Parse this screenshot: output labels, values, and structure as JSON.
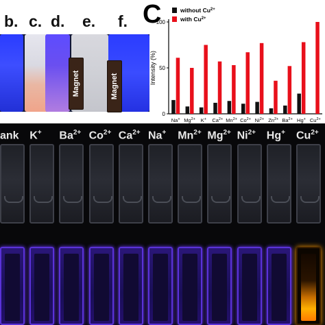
{
  "top_panel": {
    "letters": [
      "b.",
      "c.",
      "d.",
      "e.",
      "f."
    ],
    "magnet_label": "Magnet"
  },
  "panel_c_label": "C",
  "chart_data": {
    "type": "bar",
    "ylabel": "Intensity (%)",
    "yticks": [
      0,
      50,
      100
    ],
    "ylim": [
      0,
      100
    ],
    "legend_position": "top-left",
    "categories": [
      {
        "base": "Na",
        "sup": "+"
      },
      {
        "base": "Mg",
        "sup": "2+"
      },
      {
        "base": "K",
        "sup": "+"
      },
      {
        "base": "Ca",
        "sup": "2+"
      },
      {
        "base": "Mn",
        "sup": "2+"
      },
      {
        "base": "Co",
        "sup": "2+"
      },
      {
        "base": "Ni",
        "sup": "2+"
      },
      {
        "base": "Zn",
        "sup": "2+"
      },
      {
        "base": "Ba",
        "sup": "2+"
      },
      {
        "base": "Hg",
        "sup": "+"
      },
      {
        "base": "Cu",
        "sup": "2+"
      }
    ],
    "series": [
      {
        "name": "without Cu",
        "name_sup": "2+",
        "color": "#111111",
        "values": [
          15,
          8,
          7,
          12,
          14,
          11,
          13,
          6,
          9,
          22,
          0
        ]
      },
      {
        "name": "with Cu",
        "name_sup": "2+",
        "color": "#e8101b",
        "values": [
          61,
          50,
          75,
          57,
          53,
          67,
          77,
          36,
          52,
          78,
          100
        ]
      }
    ]
  },
  "bottom_panel": {
    "samples": [
      {
        "base": "ank",
        "sup": "",
        "lower_glow": "violet"
      },
      {
        "base": "K",
        "sup": "+",
        "lower_glow": "violet"
      },
      {
        "base": "Ba",
        "sup": "2+",
        "lower_glow": "violet"
      },
      {
        "base": "Co",
        "sup": "2+",
        "lower_glow": "violet"
      },
      {
        "base": "Ca",
        "sup": "2+",
        "lower_glow": "violet"
      },
      {
        "base": "Na",
        "sup": "+",
        "lower_glow": "violet"
      },
      {
        "base": "Mn",
        "sup": "2+",
        "lower_glow": "violet"
      },
      {
        "base": "Mg",
        "sup": "2+",
        "lower_glow": "violet"
      },
      {
        "base": "Ni",
        "sup": "2+",
        "lower_glow": "violet"
      },
      {
        "base": "Hg",
        "sup": "+",
        "lower_glow": "violet"
      },
      {
        "base": "Cu",
        "sup": "2+",
        "lower_glow": "orange"
      }
    ]
  }
}
